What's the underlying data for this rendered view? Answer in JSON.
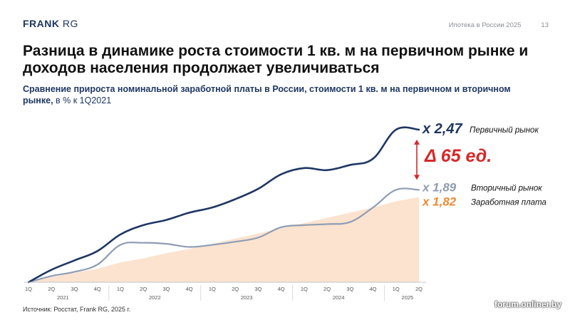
{
  "header": {
    "logo_bold": "FRANK",
    "logo_light": "RG",
    "report": "Ипотека в России 2025",
    "page": "13"
  },
  "title": "Разница в динамике роста стоимости 1 кв. м на первичном рынке и доходов населения продолжает увеличиваться",
  "subtitle": {
    "bold": "Сравнение прироста номинальной заработной платы в России, стоимости 1 кв. м на первичном и вторичном рынке,",
    "unit": " в % к 1Q2021"
  },
  "source": "Источник: Росстат, Frank RG, 2025 г.",
  "watermark": "forum.onliner.by",
  "colors": {
    "primary": "#1f3763",
    "secondary": "#8e9db3",
    "salary_fill": "#fbe3cf",
    "salary_text": "#ec8a34",
    "delta": "#d62828"
  },
  "chart_data": {
    "type": "area",
    "x": [
      "1Q 2021",
      "2Q 2021",
      "3Q 2021",
      "4Q 2021",
      "1Q 2022",
      "2Q 2022",
      "3Q 2022",
      "4Q 2022",
      "1Q 2023",
      "2Q 2023",
      "3Q 2023",
      "4Q 2023",
      "1Q 2024",
      "2Q 2024",
      "3Q 2024",
      "4Q 2024",
      "1Q 2025",
      "2Q 2025"
    ],
    "tick_labels": [
      "1Q",
      "2Q",
      "3Q",
      "4Q",
      "1Q",
      "2Q",
      "3Q",
      "4Q",
      "1Q",
      "2Q",
      "3Q",
      "4Q",
      "1Q",
      "2Q",
      "3Q",
      "4Q",
      "1Q",
      "2Q"
    ],
    "years": [
      {
        "label": "2021",
        "start": 0,
        "end": 3
      },
      {
        "label": "2022",
        "start": 4,
        "end": 7
      },
      {
        "label": "2023",
        "start": 8,
        "end": 11
      },
      {
        "label": "2024",
        "start": 12,
        "end": 15
      },
      {
        "label": "2025",
        "start": 16,
        "end": 17
      }
    ],
    "ylim": [
      1.0,
      2.6
    ],
    "series": [
      {
        "name": "Первичный рынок",
        "key": "primary",
        "values": [
          1.0,
          1.12,
          1.21,
          1.3,
          1.46,
          1.55,
          1.6,
          1.67,
          1.72,
          1.8,
          1.9,
          2.04,
          2.1,
          2.08,
          2.13,
          2.19,
          2.47,
          2.47
        ]
      },
      {
        "name": "Вторичный рынок",
        "key": "secondary",
        "values": [
          1.0,
          1.06,
          1.1,
          1.17,
          1.36,
          1.38,
          1.37,
          1.34,
          1.36,
          1.39,
          1.43,
          1.53,
          1.55,
          1.56,
          1.58,
          1.72,
          1.89,
          1.89
        ]
      },
      {
        "name": "Заработная плата",
        "key": "salary",
        "values": [
          1.0,
          1.05,
          1.09,
          1.13,
          1.19,
          1.23,
          1.28,
          1.32,
          1.37,
          1.42,
          1.47,
          1.52,
          1.57,
          1.62,
          1.67,
          1.72,
          1.78,
          1.82
        ]
      }
    ],
    "end_labels": [
      {
        "key": "primary",
        "multiplier": "x 2,47",
        "name": "Первичный рынок"
      },
      {
        "key": "secondary",
        "multiplier": "x 1,89",
        "name": "Вторичный рынок"
      },
      {
        "key": "salary",
        "multiplier": "x 1,82",
        "name": "Заработная плата"
      }
    ],
    "delta_annotation": "Δ 65 ед."
  }
}
